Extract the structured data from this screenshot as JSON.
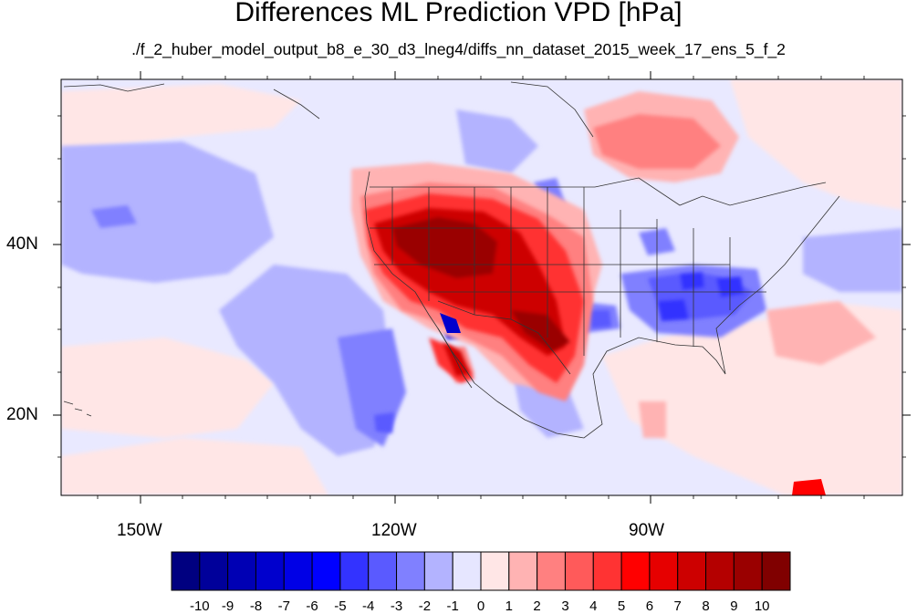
{
  "title": "Differences ML Prediction VPD [hPa]",
  "subtitle": "./f_2_huber_model_output_b8_e_30_d3_lneg4/diffs_nn_dataset_2015_week_17_ens_5_f_2",
  "lon_labels": [
    "150W",
    "120W",
    "90W"
  ],
  "lat_labels": [
    "40N",
    "20N"
  ],
  "colorbar": {
    "labels": [
      "-10",
      "-9",
      "-8",
      "-7",
      "-6",
      "-5",
      "-4",
      "-3",
      "-2",
      "-1",
      "0",
      "1",
      "2",
      "3",
      "4",
      "5",
      "6",
      "7",
      "8",
      "9",
      "10"
    ],
    "colors": [
      "#000080",
      "#00009a",
      "#0000b4",
      "#0000cd",
      "#0000e6",
      "#0000ff",
      "#3333ff",
      "#5a5aff",
      "#8080ff",
      "#b3b3ff",
      "#e6e6ff",
      "#ffe6e6",
      "#ffb3b3",
      "#ff8080",
      "#ff5a5a",
      "#ff3333",
      "#ff0000",
      "#e60000",
      "#cd0000",
      "#b40000",
      "#9a0000",
      "#800000"
    ]
  }
}
